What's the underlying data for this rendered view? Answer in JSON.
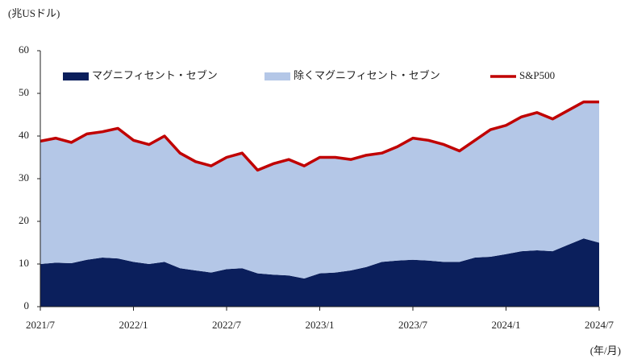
{
  "chart_data": {
    "type": "stacked-area-line",
    "y_unit": "(兆USドル)",
    "x_unit": "(年/月)",
    "x": [
      "2021-07",
      "2021-08",
      "2021-09",
      "2021-10",
      "2021-11",
      "2021-12",
      "2022-01",
      "2022-02",
      "2022-03",
      "2022-04",
      "2022-05",
      "2022-06",
      "2022-07",
      "2022-08",
      "2022-09",
      "2022-10",
      "2022-11",
      "2022-12",
      "2023-01",
      "2023-02",
      "2023-03",
      "2023-04",
      "2023-05",
      "2023-06",
      "2023-07",
      "2023-08",
      "2023-09",
      "2023-10",
      "2023-11",
      "2023-12",
      "2024-01",
      "2024-02",
      "2024-03",
      "2024-04",
      "2024-05",
      "2024-06",
      "2024-07"
    ],
    "xlim": [
      "2021-07",
      "2024-07"
    ],
    "xticks": [
      {
        "value": "2021-07",
        "label": "2021/7"
      },
      {
        "value": "2022-01",
        "label": "2022/1"
      },
      {
        "value": "2022-07",
        "label": "2022/7"
      },
      {
        "value": "2023-01",
        "label": "2023/1"
      },
      {
        "value": "2023-07",
        "label": "2023/7"
      },
      {
        "value": "2024-01",
        "label": "2024/1"
      },
      {
        "value": "2024-07",
        "label": "2024/7"
      }
    ],
    "ylim": [
      0,
      60
    ],
    "yticks": [
      0,
      10,
      20,
      30,
      40,
      50,
      60
    ],
    "legend": "top-left",
    "series": [
      {
        "name": "マグニフィセント・セブン",
        "color": "#0b1f5c",
        "kind": "area",
        "values": [
          10,
          10.3,
          10.2,
          11,
          11.5,
          11.3,
          10.5,
          10,
          10.5,
          9,
          8.5,
          8,
          8.8,
          9,
          7.8,
          7.5,
          7.3,
          6.6,
          7.8,
          8,
          8.5,
          9.3,
          10.5,
          10.8,
          11,
          10.8,
          10.5,
          10.5,
          11.5,
          11.7,
          12.3,
          13,
          13.2,
          13,
          14.5,
          16,
          15
        ]
      },
      {
        "name": "除くマグニフィセント・セブン",
        "color": "#b4c7e7",
        "kind": "area",
        "values": [
          28.8,
          29.2,
          28.3,
          29.5,
          29.5,
          30.5,
          28.5,
          28,
          29.5,
          27,
          25.5,
          25,
          26.2,
          27,
          24.2,
          26,
          27.2,
          26.4,
          27.2,
          27,
          26,
          26.2,
          25.5,
          26.7,
          28.5,
          28.2,
          27.5,
          26,
          27.5,
          29.8,
          30.2,
          31.5,
          32.3,
          31,
          31.5,
          32,
          33
        ]
      },
      {
        "name": "S&P500",
        "color": "#c00000",
        "kind": "line",
        "values": [
          38.8,
          39.5,
          38.5,
          40.5,
          41,
          41.8,
          39,
          38,
          40,
          36,
          34,
          33,
          35,
          36,
          32,
          33.5,
          34.5,
          33,
          35,
          35,
          34.5,
          35.5,
          36,
          37.5,
          39.5,
          39,
          38,
          36.5,
          39,
          41.5,
          42.5,
          44.5,
          45.5,
          44,
          46,
          48,
          48
        ]
      }
    ]
  }
}
